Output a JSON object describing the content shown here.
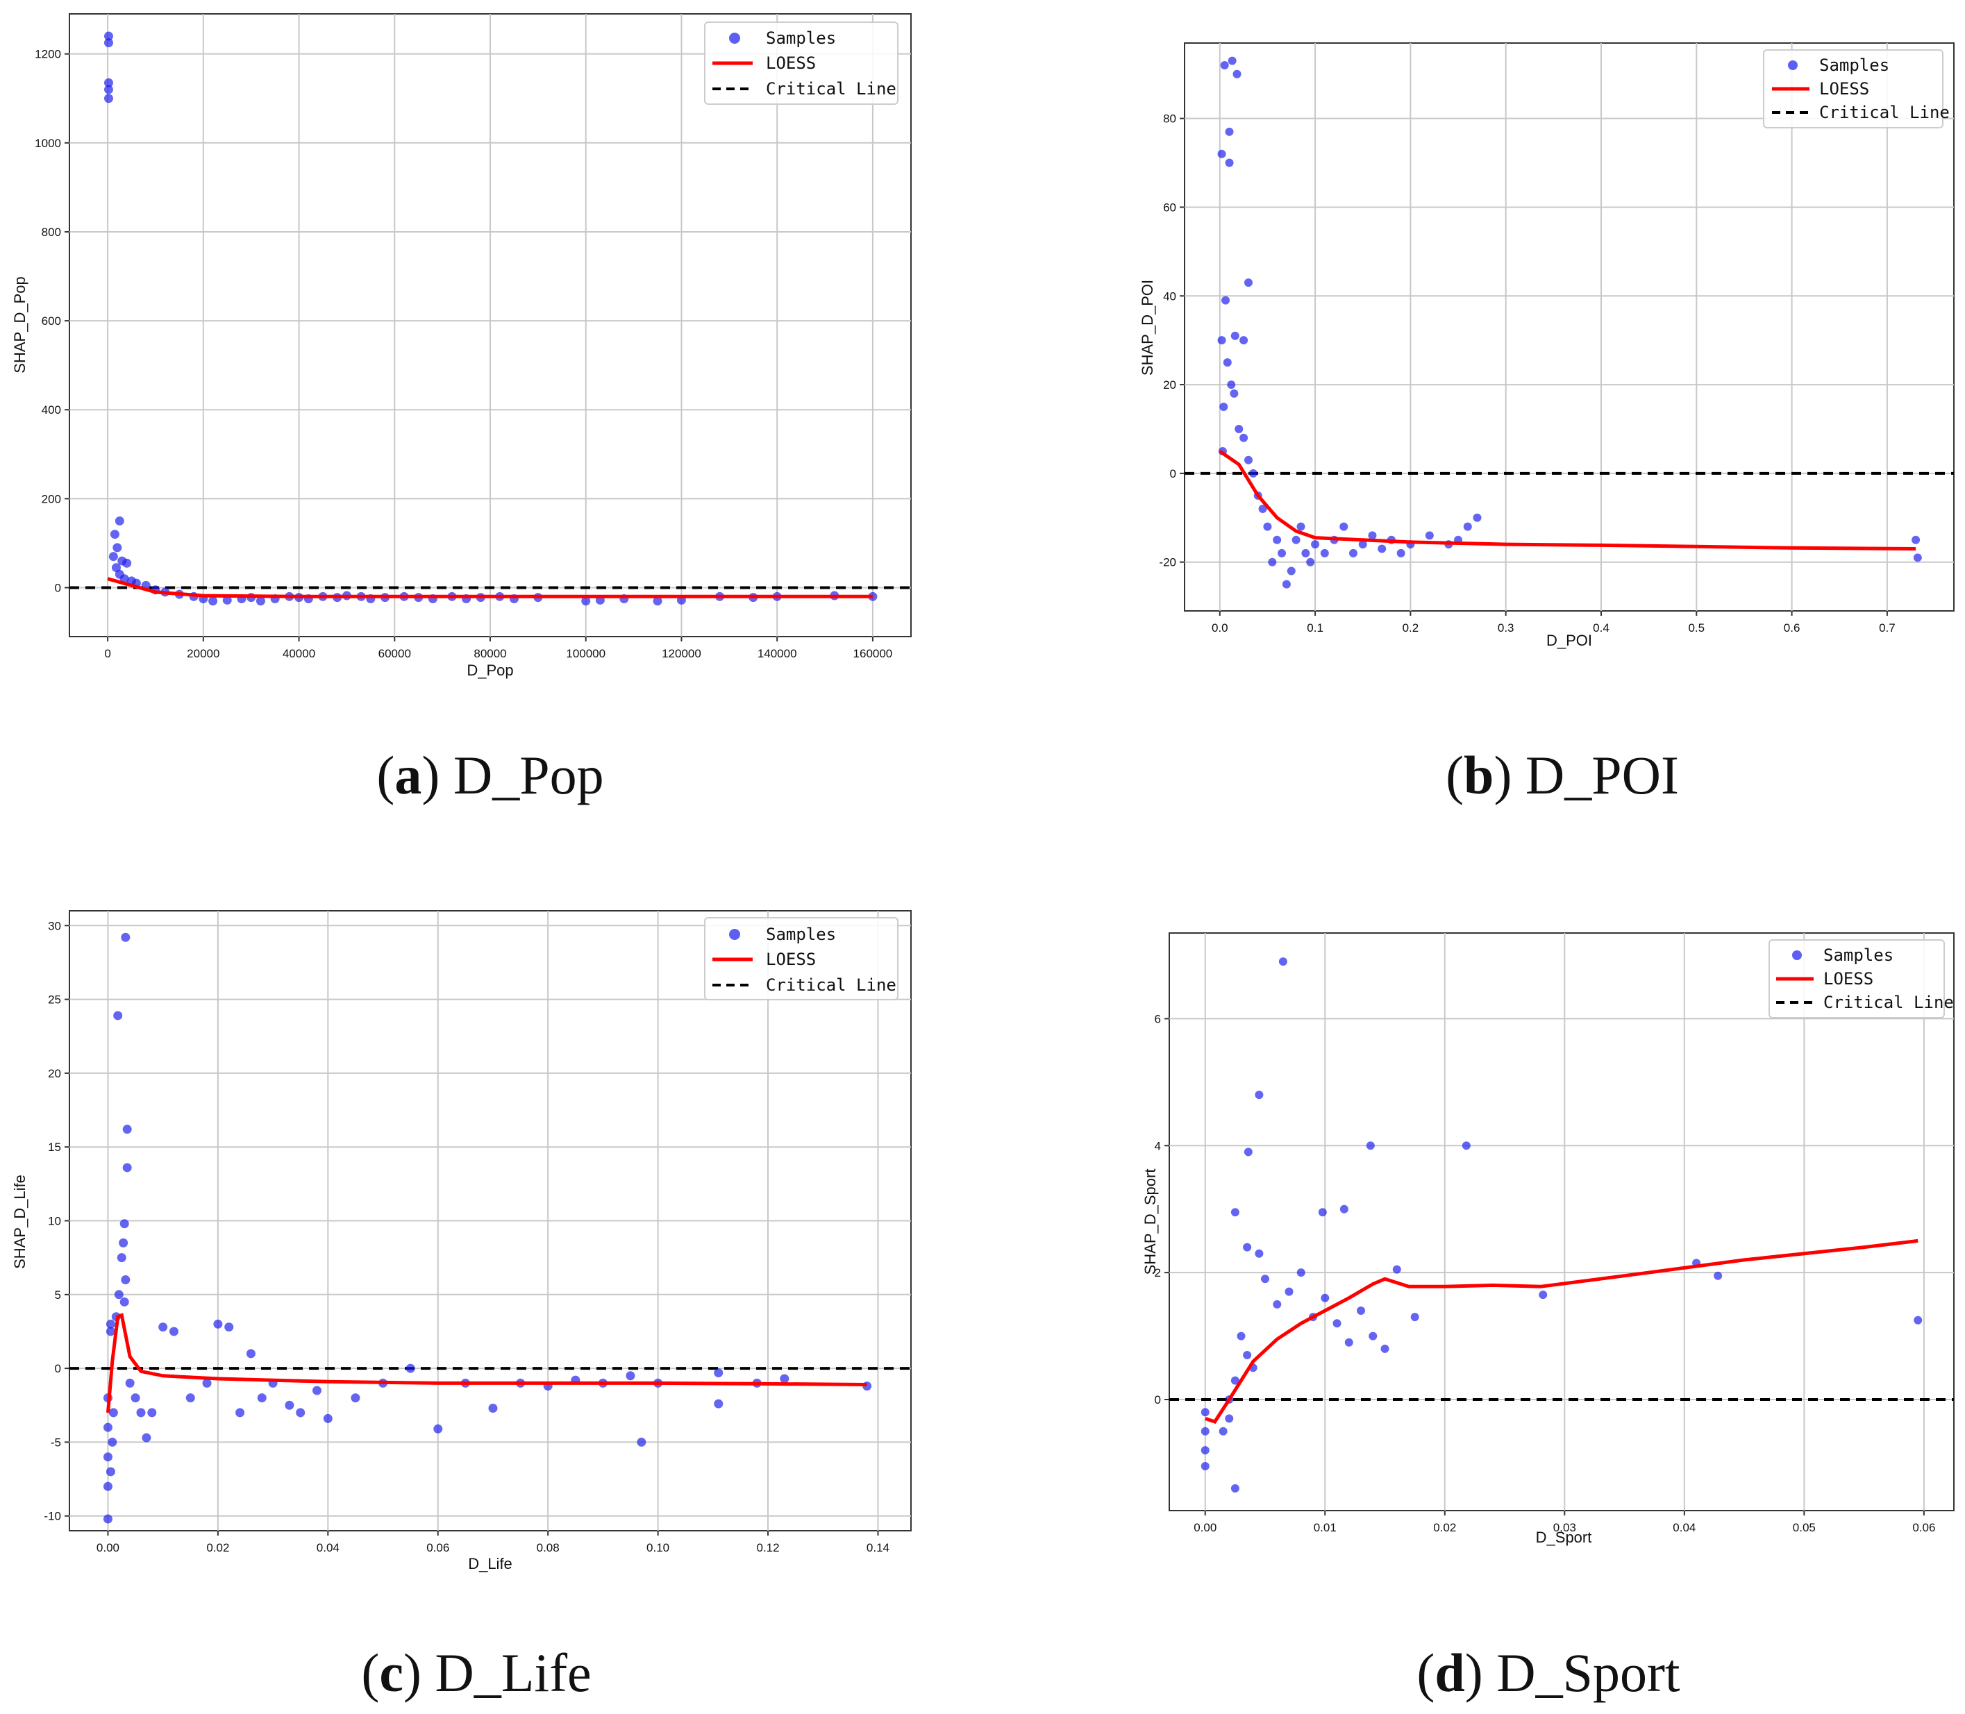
{
  "figure": {
    "legend": {
      "samples": "Samples",
      "loess": "LOESS",
      "critical": "Critical Line"
    },
    "colors": {
      "samples": "#1a1aee",
      "loess": "#ff0000",
      "critical": "#000000",
      "grid": "#c8c8c8"
    }
  },
  "chart_data": [
    {
      "id": "a",
      "type": "scatter",
      "caption_letter": "a",
      "caption_text": "D_Pop",
      "xlabel": "D_Pop",
      "ylabel": "SHAP_D_Pop",
      "xlim": [
        -8000,
        168000
      ],
      "ylim": [
        -110,
        1290
      ],
      "xticks": [
        0,
        20000,
        40000,
        60000,
        80000,
        100000,
        120000,
        140000,
        160000
      ],
      "xticklabels": [
        "0",
        "20000",
        "40000",
        "60000",
        "80000",
        "100000",
        "120000",
        "140000",
        "160000"
      ],
      "yticks": [
        0,
        200,
        400,
        600,
        800,
        1000,
        1200
      ],
      "yticklabels": [
        "0",
        "200",
        "400",
        "600",
        "800",
        "1000",
        "1200"
      ],
      "critical_y": 0,
      "samples": [
        [
          200,
          1240
        ],
        [
          200,
          1225
        ],
        [
          200,
          1135
        ],
        [
          200,
          1120
        ],
        [
          200,
          1100
        ],
        [
          1500,
          120
        ],
        [
          2500,
          150
        ],
        [
          2000,
          90
        ],
        [
          1200,
          70
        ],
        [
          3000,
          60
        ],
        [
          1800,
          45
        ],
        [
          4000,
          55
        ],
        [
          2500,
          30
        ],
        [
          3500,
          20
        ],
        [
          5000,
          15
        ],
        [
          6000,
          10
        ],
        [
          8000,
          5
        ],
        [
          10000,
          -5
        ],
        [
          12000,
          -10
        ],
        [
          15000,
          -15
        ],
        [
          18000,
          -20
        ],
        [
          20000,
          -25
        ],
        [
          22000,
          -30
        ],
        [
          25000,
          -28
        ],
        [
          28000,
          -25
        ],
        [
          30000,
          -22
        ],
        [
          32000,
          -30
        ],
        [
          35000,
          -25
        ],
        [
          38000,
          -20
        ],
        [
          40000,
          -22
        ],
        [
          42000,
          -25
        ],
        [
          45000,
          -20
        ],
        [
          48000,
          -22
        ],
        [
          50000,
          -18
        ],
        [
          53000,
          -20
        ],
        [
          55000,
          -25
        ],
        [
          58000,
          -22
        ],
        [
          62000,
          -20
        ],
        [
          65000,
          -22
        ],
        [
          68000,
          -25
        ],
        [
          72000,
          -20
        ],
        [
          75000,
          -25
        ],
        [
          78000,
          -22
        ],
        [
          82000,
          -20
        ],
        [
          85000,
          -25
        ],
        [
          90000,
          -22
        ],
        [
          100000,
          -30
        ],
        [
          103000,
          -28
        ],
        [
          108000,
          -25
        ],
        [
          115000,
          -30
        ],
        [
          120000,
          -28
        ],
        [
          128000,
          -20
        ],
        [
          135000,
          -22
        ],
        [
          140000,
          -20
        ],
        [
          152000,
          -18
        ],
        [
          160000,
          -20
        ]
      ],
      "loess": [
        [
          0,
          20
        ],
        [
          5000,
          5
        ],
        [
          10000,
          -10
        ],
        [
          20000,
          -18
        ],
        [
          40000,
          -20
        ],
        [
          60000,
          -20
        ],
        [
          80000,
          -20
        ],
        [
          100000,
          -20
        ],
        [
          120000,
          -20
        ],
        [
          140000,
          -20
        ],
        [
          160000,
          -20
        ]
      ]
    },
    {
      "id": "b",
      "type": "scatter",
      "caption_letter": "b",
      "caption_text": "D_POI",
      "xlabel": "D_POI",
      "ylabel": "SHAP_D_POI",
      "xlim": [
        -0.037,
        0.77
      ],
      "ylim": [
        -31,
        97
      ],
      "xticks": [
        0,
        0.1,
        0.2,
        0.3,
        0.4,
        0.5,
        0.6,
        0.7
      ],
      "xticklabels": [
        "0.0",
        "0.1",
        "0.2",
        "0.3",
        "0.4",
        "0.5",
        "0.6",
        "0.7"
      ],
      "yticks": [
        -20,
        0,
        20,
        40,
        60,
        80
      ],
      "yticklabels": [
        "-20",
        "0",
        "20",
        "40",
        "60",
        "80"
      ],
      "critical_y": 0,
      "samples": [
        [
          0.005,
          92
        ],
        [
          0.013,
          93
        ],
        [
          0.018,
          90
        ],
        [
          0.01,
          77
        ],
        [
          0.002,
          72
        ],
        [
          0.01,
          70
        ],
        [
          0.03,
          43
        ],
        [
          0.006,
          39
        ],
        [
          0.016,
          31
        ],
        [
          0.025,
          30
        ],
        [
          0.002,
          30
        ],
        [
          0.008,
          25
        ],
        [
          0.012,
          20
        ],
        [
          0.004,
          15
        ],
        [
          0.015,
          18
        ],
        [
          0.02,
          10
        ],
        [
          0.003,
          5
        ],
        [
          0.025,
          8
        ],
        [
          0.03,
          3
        ],
        [
          0.035,
          0
        ],
        [
          0.04,
          -5
        ],
        [
          0.045,
          -8
        ],
        [
          0.05,
          -12
        ],
        [
          0.06,
          -15
        ],
        [
          0.055,
          -20
        ],
        [
          0.065,
          -18
        ],
        [
          0.07,
          -25
        ],
        [
          0.075,
          -22
        ],
        [
          0.08,
          -15
        ],
        [
          0.085,
          -12
        ],
        [
          0.09,
          -18
        ],
        [
          0.095,
          -20
        ],
        [
          0.1,
          -16
        ],
        [
          0.11,
          -18
        ],
        [
          0.12,
          -15
        ],
        [
          0.13,
          -12
        ],
        [
          0.14,
          -18
        ],
        [
          0.15,
          -16
        ],
        [
          0.16,
          -14
        ],
        [
          0.17,
          -17
        ],
        [
          0.18,
          -15
        ],
        [
          0.19,
          -18
        ],
        [
          0.2,
          -16
        ],
        [
          0.22,
          -14
        ],
        [
          0.24,
          -16
        ],
        [
          0.25,
          -15
        ],
        [
          0.26,
          -12
        ],
        [
          0.27,
          -10
        ],
        [
          0.73,
          -15
        ],
        [
          0.732,
          -19
        ]
      ],
      "loess": [
        [
          0,
          5
        ],
        [
          0.02,
          2
        ],
        [
          0.04,
          -5
        ],
        [
          0.06,
          -10
        ],
        [
          0.08,
          -13
        ],
        [
          0.1,
          -14.5
        ],
        [
          0.15,
          -15
        ],
        [
          0.2,
          -15.5
        ],
        [
          0.3,
          -16
        ],
        [
          0.4,
          -16.2
        ],
        [
          0.5,
          -16.5
        ],
        [
          0.6,
          -16.8
        ],
        [
          0.73,
          -17
        ]
      ]
    },
    {
      "id": "c",
      "type": "scatter",
      "caption_letter": "c",
      "caption_text": "D_Life",
      "xlabel": "D_Life",
      "ylabel": "SHAP_D_Life",
      "xlim": [
        -0.007,
        0.146
      ],
      "ylim": [
        -11,
        31
      ],
      "xticks": [
        0,
        0.02,
        0.04,
        0.06,
        0.08,
        0.1,
        0.12,
        0.14
      ],
      "xticklabels": [
        "0.00",
        "0.02",
        "0.04",
        "0.06",
        "0.08",
        "0.10",
        "0.12",
        "0.14"
      ],
      "yticks": [
        -10,
        -5,
        0,
        5,
        10,
        15,
        20,
        25,
        30
      ],
      "yticklabels": [
        "-10",
        "-5",
        "0",
        "5",
        "10",
        "15",
        "20",
        "25",
        "30"
      ],
      "critical_y": 0,
      "samples": [
        [
          0.0032,
          29.2
        ],
        [
          0.0018,
          23.9
        ],
        [
          0.0035,
          16.2
        ],
        [
          0.0035,
          13.6
        ],
        [
          0.003,
          9.8
        ],
        [
          0.0028,
          8.5
        ],
        [
          0.0025,
          7.5
        ],
        [
          0.0032,
          6.0
        ],
        [
          0.002,
          5.0
        ],
        [
          0.003,
          4.5
        ],
        [
          0.0015,
          3.5
        ],
        [
          0.0005,
          3.0
        ],
        [
          0.0005,
          2.5
        ],
        [
          0.0,
          -2
        ],
        [
          0.0,
          -4
        ],
        [
          0.0,
          -6
        ],
        [
          0.0,
          -8
        ],
        [
          0.0,
          -10.2
        ],
        [
          0.0005,
          -7
        ],
        [
          0.0008,
          -5
        ],
        [
          0.001,
          -3
        ],
        [
          0.004,
          -1
        ],
        [
          0.005,
          -2
        ],
        [
          0.006,
          -3
        ],
        [
          0.007,
          -4.7
        ],
        [
          0.008,
          -3
        ],
        [
          0.01,
          2.8
        ],
        [
          0.012,
          2.5
        ],
        [
          0.015,
          -2
        ],
        [
          0.018,
          -1
        ],
        [
          0.02,
          3.0
        ],
        [
          0.022,
          2.8
        ],
        [
          0.024,
          -3
        ],
        [
          0.026,
          1
        ],
        [
          0.028,
          -2
        ],
        [
          0.03,
          -1
        ],
        [
          0.033,
          -2.5
        ],
        [
          0.035,
          -3
        ],
        [
          0.038,
          -1.5
        ],
        [
          0.04,
          -3.4
        ],
        [
          0.045,
          -2
        ],
        [
          0.05,
          -1
        ],
        [
          0.055,
          0
        ],
        [
          0.06,
          -4.1
        ],
        [
          0.065,
          -1
        ],
        [
          0.07,
          -2.7
        ],
        [
          0.075,
          -1
        ],
        [
          0.08,
          -1.2
        ],
        [
          0.085,
          -0.8
        ],
        [
          0.09,
          -1
        ],
        [
          0.095,
          -0.5
        ],
        [
          0.097,
          -5
        ],
        [
          0.1,
          -1
        ],
        [
          0.111,
          -0.3
        ],
        [
          0.111,
          -2.4
        ],
        [
          0.118,
          -1
        ],
        [
          0.123,
          -0.7
        ],
        [
          0.138,
          -1.2
        ]
      ],
      "loess": [
        [
          0,
          -3
        ],
        [
          0.0008,
          0.5
        ],
        [
          0.0018,
          3.5
        ],
        [
          0.0025,
          3.6
        ],
        [
          0.004,
          0.8
        ],
        [
          0.006,
          -0.2
        ],
        [
          0.01,
          -0.5
        ],
        [
          0.02,
          -0.7
        ],
        [
          0.04,
          -0.9
        ],
        [
          0.06,
          -1.0
        ],
        [
          0.08,
          -1.0
        ],
        [
          0.1,
          -1.0
        ],
        [
          0.12,
          -1.05
        ],
        [
          0.138,
          -1.1
        ]
      ]
    },
    {
      "id": "d",
      "type": "scatter",
      "caption_letter": "d",
      "caption_text": "D_Sport",
      "xlabel": "D_Sport",
      "ylabel": "SHAP_D_Sport",
      "xlim": [
        -0.003,
        0.0625
      ],
      "ylim": [
        -1.75,
        7.35
      ],
      "xticks": [
        0,
        0.01,
        0.02,
        0.03,
        0.04,
        0.05,
        0.06
      ],
      "xticklabels": [
        "0.00",
        "0.01",
        "0.02",
        "0.03",
        "0.04",
        "0.05",
        "0.06"
      ],
      "yticks": [
        0,
        2,
        4,
        6
      ],
      "yticklabels": [
        "0",
        "2",
        "4",
        "6"
      ],
      "critical_y": 0,
      "samples": [
        [
          0.0065,
          6.9
        ],
        [
          0.0045,
          4.8
        ],
        [
          0.0036,
          3.9
        ],
        [
          0.0138,
          4.0
        ],
        [
          0.0218,
          4.0
        ],
        [
          0.0025,
          2.95
        ],
        [
          0.0098,
          2.95
        ],
        [
          0.0116,
          3.0
        ],
        [
          0.0035,
          2.4
        ],
        [
          0.0045,
          2.3
        ],
        [
          0.005,
          1.9
        ],
        [
          0.006,
          1.5
        ],
        [
          0.007,
          1.7
        ],
        [
          0.008,
          2.0
        ],
        [
          0.009,
          1.3
        ],
        [
          0.01,
          1.6
        ],
        [
          0.011,
          1.2
        ],
        [
          0.012,
          0.9
        ],
        [
          0.013,
          1.4
        ],
        [
          0.014,
          1.0
        ],
        [
          0.015,
          0.8
        ],
        [
          0.016,
          2.05
        ],
        [
          0.0175,
          1.3
        ],
        [
          0.003,
          1.0
        ],
        [
          0.0035,
          0.7
        ],
        [
          0.004,
          0.5
        ],
        [
          0.0025,
          0.3
        ],
        [
          0.002,
          0.0
        ],
        [
          0.002,
          -0.3
        ],
        [
          0.0015,
          -0.5
        ],
        [
          0.0025,
          -1.4
        ],
        [
          0.0,
          -0.2
        ],
        [
          0.0,
          -0.5
        ],
        [
          0.0,
          -0.8
        ],
        [
          0.0,
          -1.05
        ],
        [
          0.0282,
          1.65
        ],
        [
          0.041,
          2.15
        ],
        [
          0.0428,
          1.95
        ],
        [
          0.0595,
          1.25
        ]
      ],
      "loess": [
        [
          0,
          -0.3
        ],
        [
          0.0008,
          -0.35
        ],
        [
          0.002,
          0.0
        ],
        [
          0.004,
          0.6
        ],
        [
          0.006,
          0.95
        ],
        [
          0.008,
          1.2
        ],
        [
          0.01,
          1.4
        ],
        [
          0.012,
          1.6
        ],
        [
          0.014,
          1.82
        ],
        [
          0.015,
          1.9
        ],
        [
          0.017,
          1.78
        ],
        [
          0.02,
          1.78
        ],
        [
          0.024,
          1.8
        ],
        [
          0.028,
          1.78
        ],
        [
          0.035,
          1.95
        ],
        [
          0.045,
          2.2
        ],
        [
          0.055,
          2.4
        ],
        [
          0.0595,
          2.5
        ]
      ]
    }
  ]
}
